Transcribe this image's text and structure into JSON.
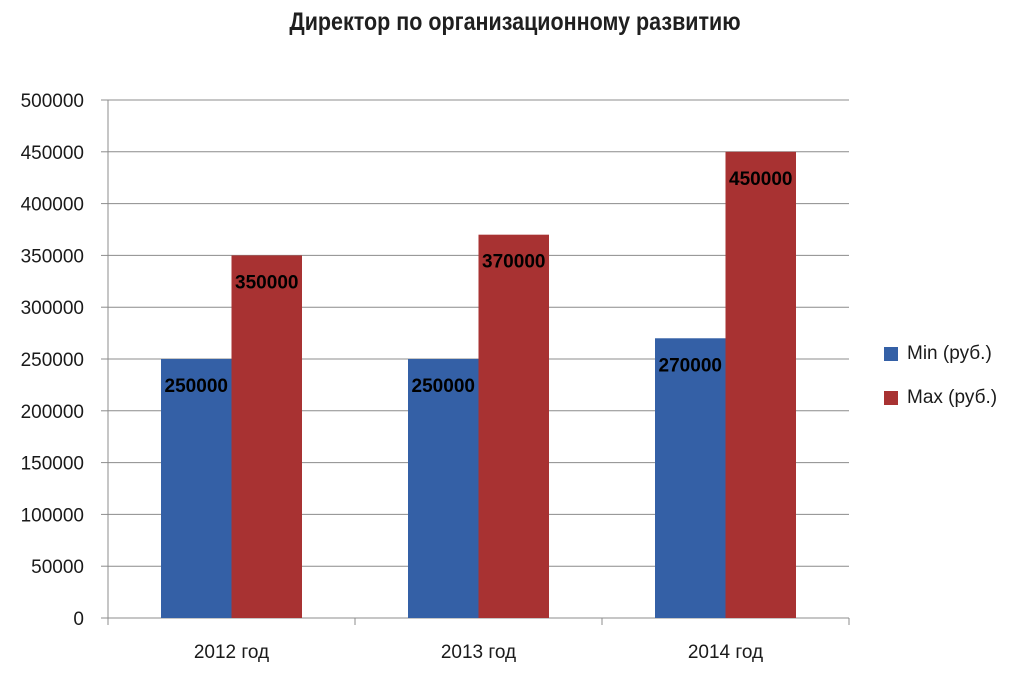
{
  "chart_data": {
    "type": "bar",
    "title": "Директор по организационному развитию",
    "categories": [
      "2012 год",
      "2013 год",
      "2014 год"
    ],
    "series": [
      {
        "name": "Min (руб.)",
        "color": "#3460a6",
        "values": [
          250000,
          250000,
          270000
        ]
      },
      {
        "name": "Max (руб.)",
        "color": "#a83232",
        "values": [
          350000,
          370000,
          450000
        ]
      }
    ],
    "y_ticks": [
      "0",
      "50000",
      "100000",
      "150000",
      "200000",
      "250000",
      "300000",
      "350000",
      "400000",
      "450000",
      "500000"
    ],
    "ylim": [
      0,
      500000
    ],
    "grid": true,
    "legend": "right"
  }
}
